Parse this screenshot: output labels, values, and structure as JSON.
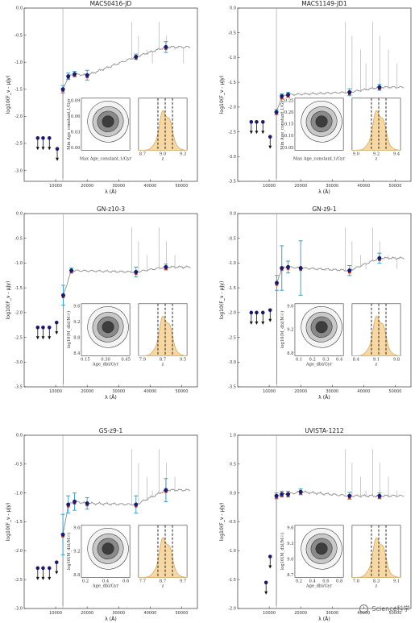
{
  "chart_data": [
    {
      "type": "scatter",
      "title": "MACS0416-JD",
      "xlabel": "λ (Å)",
      "ylabel": "log10(F_ν - μJy)",
      "xlim": [
        0,
        55000
      ],
      "ylim": [
        -3.2,
        0.0
      ],
      "xticks": [
        "10000",
        "20000",
        "30000",
        "40000",
        "50000"
      ],
      "yticks": [
        "0.0",
        "-0.5",
        "-1.0",
        "-1.5",
        "-2.0",
        "-2.5",
        "-3.0"
      ],
      "photometry": [
        {
          "x": 12300,
          "y": -1.5,
          "err": 0.07
        },
        {
          "x": 14000,
          "y": -1.26,
          "err": 0.06
        },
        {
          "x": 16000,
          "y": -1.22,
          "err": 0.05
        },
        {
          "x": 20000,
          "y": -1.24,
          "err": 0.09
        },
        {
          "x": 35500,
          "y": -0.9,
          "err": 0.05
        },
        {
          "x": 45000,
          "y": -0.72,
          "err": 0.1
        }
      ],
      "upper_limits": [
        {
          "x": 4300,
          "y": -2.4
        },
        {
          "x": 6000,
          "y": -2.4
        },
        {
          "x": 8000,
          "y": -2.4
        },
        {
          "x": 10500,
          "y": -2.6
        }
      ],
      "inset_left": {
        "xlabel": "Max Age_constant,1/Gyr",
        "ylabel": "Min Age_constant,1/Gyr",
        "yticks": [
          "0.09",
          "0.06",
          "0.03",
          "0.00"
        ]
      },
      "inset_right": {
        "xlabel": "z",
        "xticks": [
          "8.7",
          "9.0",
          "9.3"
        ]
      }
    },
    {
      "type": "scatter",
      "title": "MACS1149-JD1",
      "xlabel": "λ (Å)",
      "ylabel": "log10(F_ν - μJy)",
      "xlim": [
        0,
        55000
      ],
      "ylim": [
        -3.5,
        0.0
      ],
      "xticks": [
        "10000",
        "20000",
        "30000",
        "40000",
        "50000"
      ],
      "yticks": [
        "0.0",
        "-0.5",
        "-1.0",
        "-1.5",
        "-2.0",
        "-2.5",
        "-3.0",
        "-3.5"
      ],
      "photometry": [
        {
          "x": 12300,
          "y": -2.1,
          "err": 0.05
        },
        {
          "x": 14000,
          "y": -1.78,
          "err": 0.05
        },
        {
          "x": 16000,
          "y": -1.75,
          "err": 0.05
        },
        {
          "x": 35500,
          "y": -1.7,
          "err": 0.07
        },
        {
          "x": 45000,
          "y": -1.6,
          "err": 0.06
        }
      ],
      "upper_limits": [
        {
          "x": 4300,
          "y": -2.3
        },
        {
          "x": 6000,
          "y": -2.3
        },
        {
          "x": 8000,
          "y": -2.3
        },
        {
          "x": 10300,
          "y": -2.6
        }
      ],
      "inset_left": {
        "xlabel": "Max Age_constant,1/Gyr",
        "ylabel": "Min Age_constant,1/Gyr",
        "yticks": [
          "0.25",
          "0.20",
          "0.15",
          "0.10",
          "0.05"
        ]
      },
      "inset_right": {
        "xlabel": "z",
        "xticks": [
          "9.0",
          "9.2",
          "9.4"
        ]
      }
    },
    {
      "type": "scatter",
      "title": "GN-z10-3",
      "xlabel": "λ (Å)",
      "ylabel": "log10(F_ν - μJy)",
      "xlim": [
        0,
        55000
      ],
      "ylim": [
        -3.5,
        0.0
      ],
      "xticks": [
        "10000",
        "20000",
        "30000",
        "40000",
        "50000"
      ],
      "yticks": [
        "0.0",
        "-0.5",
        "-1.0",
        "-1.5",
        "-2.0",
        "-2.5",
        "-3.0",
        "-3.5"
      ],
      "photometry": [
        {
          "x": 12400,
          "y": -1.65,
          "err": 0.2
        },
        {
          "x": 15000,
          "y": -1.15,
          "err": 0.05
        },
        {
          "x": 35500,
          "y": -1.18,
          "err": 0.1
        },
        {
          "x": 45000,
          "y": -1.08,
          "err": 0.06
        }
      ],
      "upper_limits": [
        {
          "x": 4300,
          "y": -2.3
        },
        {
          "x": 6000,
          "y": -2.3
        },
        {
          "x": 8000,
          "y": -2.3
        },
        {
          "x": 10300,
          "y": -2.2
        }
      ],
      "inset_left": {
        "xlabel": "Age_dbl/Gyr",
        "ylabel": "log10(M_dbl/M☉)",
        "yticks": [
          "9.6",
          "9.2",
          "8.8",
          "8.4"
        ],
        "xticks": [
          "0.15",
          "0.30",
          "0.45"
        ]
      },
      "inset_right": {
        "xlabel": "z",
        "xticks": [
          "7.9",
          "8.7",
          "9.5"
        ]
      }
    },
    {
      "type": "scatter",
      "title": "GN-z9-1",
      "xlabel": "λ (Å)",
      "ylabel": "log10(F_ν - μJy)",
      "xlim": [
        0,
        55000
      ],
      "ylim": [
        -3.5,
        0.0
      ],
      "xticks": [
        "10000",
        "20000",
        "30000",
        "40000",
        "50000"
      ],
      "yticks": [
        "0.0",
        "-0.5",
        "-1.0",
        "-1.5",
        "-2.0",
        "-2.5",
        "-3.0",
        "-3.5"
      ],
      "photometry": [
        {
          "x": 12400,
          "y": -1.4,
          "err": 0.15
        },
        {
          "x": 14000,
          "y": -1.1,
          "err": 0.45
        },
        {
          "x": 16000,
          "y": -1.08,
          "err": 0.12
        },
        {
          "x": 20000,
          "y": -1.1,
          "err": 0.55
        },
        {
          "x": 35500,
          "y": -1.15,
          "err": 0.1
        },
        {
          "x": 45000,
          "y": -0.9,
          "err": 0.1
        }
      ],
      "upper_limits": [
        {
          "x": 4300,
          "y": -2.0
        },
        {
          "x": 6000,
          "y": -2.0
        },
        {
          "x": 8000,
          "y": -2.0
        },
        {
          "x": 10300,
          "y": -1.95
        }
      ],
      "inset_left": {
        "xlabel": "Age_dbl/Gyr",
        "ylabel": "log10(M_dbl/M☉)",
        "yticks": [
          "9.6",
          "9.2",
          "8.8"
        ],
        "xticks": [
          "0.1",
          "0.2",
          "0.3",
          "0.4"
        ]
      },
      "inset_right": {
        "xlabel": "z",
        "xticks": [
          "8.4",
          "9.1",
          "9.8"
        ]
      }
    },
    {
      "type": "scatter",
      "title": "GS-z9-1",
      "xlabel": "λ (Å)",
      "ylabel": "log10(F_ν - μJy)",
      "xlim": [
        0,
        55000
      ],
      "ylim": [
        -3.0,
        0.0
      ],
      "xticks": [
        "10000",
        "20000",
        "30000",
        "40000",
        "50000"
      ],
      "yticks": [
        "0.0",
        "-0.5",
        "-1.0",
        "-1.5",
        "-2.0",
        "-2.5",
        "-3.0"
      ],
      "photometry": [
        {
          "x": 12300,
          "y": -1.72,
          "err": 0.35
        },
        {
          "x": 14000,
          "y": -1.2,
          "err": 0.15
        },
        {
          "x": 16000,
          "y": -1.15,
          "err": 0.15
        },
        {
          "x": 20000,
          "y": -1.18,
          "err": 0.1
        },
        {
          "x": 35500,
          "y": -1.2,
          "err": 0.15
        },
        {
          "x": 45000,
          "y": -0.95,
          "err": 0.2
        }
      ],
      "upper_limits": [
        {
          "x": 4300,
          "y": -2.3
        },
        {
          "x": 6000,
          "y": -2.3
        },
        {
          "x": 8000,
          "y": -2.3
        },
        {
          "x": 10300,
          "y": -2.2
        }
      ],
      "inset_left": {
        "xlabel": "Age_dbl/Gyr",
        "ylabel": "log10(M_dbl/M☉)",
        "yticks": [
          "9.6",
          "9.2",
          "8.8"
        ],
        "xticks": [
          "0.2",
          "0.4",
          "0.6"
        ]
      },
      "inset_right": {
        "xlabel": "z",
        "xticks": [
          "7.7",
          "8.7",
          "9.7"
        ]
      }
    },
    {
      "type": "scatter",
      "title": "UVISTA-1212",
      "xlabel": "λ (Å)",
      "ylabel": "log10(F_ν - μJy)",
      "xlim": [
        0,
        55000
      ],
      "ylim": [
        -2.0,
        1.0
      ],
      "xticks": [
        "10000",
        "20000",
        "30000",
        "40000",
        "50000"
      ],
      "yticks": [
        "1.0",
        "0.5",
        "0.0",
        "-0.5",
        "-1.0",
        "-1.5",
        "-2.0"
      ],
      "photometry": [
        {
          "x": 12300,
          "y": -0.05,
          "err": 0.05
        },
        {
          "x": 14000,
          "y": -0.02,
          "err": 0.05
        },
        {
          "x": 16000,
          "y": -0.02,
          "err": 0.05
        },
        {
          "x": 20000,
          "y": 0.02,
          "err": 0.05
        },
        {
          "x": 35500,
          "y": -0.05,
          "err": 0.06
        },
        {
          "x": 45000,
          "y": -0.05,
          "err": 0.05
        }
      ],
      "upper_limits": [
        {
          "x": 9000,
          "y": -1.55
        },
        {
          "x": 10300,
          "y": -1.1
        }
      ],
      "inset_left": {
        "xlabel": "Age_dbl/Gyr",
        "ylabel": "log10(M_dbl/M☉)",
        "yticks": [
          "9.6",
          "9.3",
          "9.0",
          "8.7"
        ],
        "xticks": [
          "0.2",
          "0.4",
          "0.6",
          "0.8"
        ]
      },
      "inset_right": {
        "xlabel": "z",
        "xticks": [
          "7.6",
          "8.3",
          "9.1"
        ]
      }
    }
  ],
  "watermark": {
    "text": "Science科学"
  },
  "colors": {
    "model": "#8c8c8c",
    "point": "#1c1a78",
    "model_point": "#c0392b",
    "errorbar": "#3fa1c6",
    "posterior_fill": "#f7d7a3",
    "posterior_edge": "#d8a24a"
  }
}
